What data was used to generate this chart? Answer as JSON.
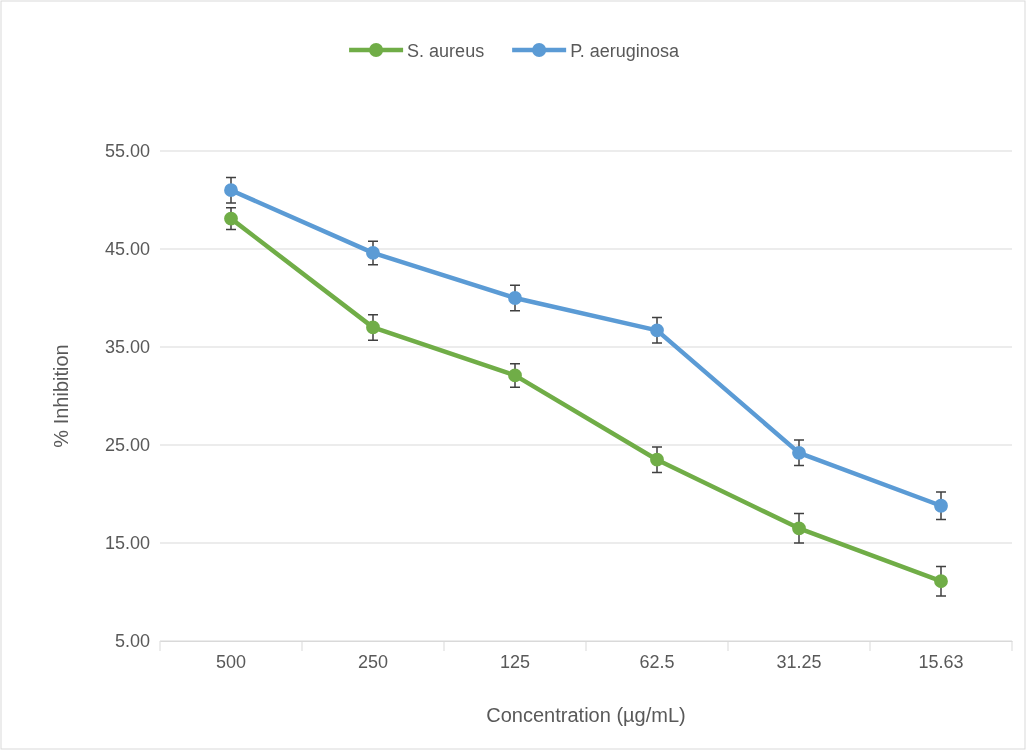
{
  "chart_data": {
    "type": "line",
    "xlabel": "Concentration (µg/mL)",
    "ylabel": "% Inhibition",
    "categories": [
      "500",
      "250",
      "125",
      "62.5",
      "31.25",
      "15.63"
    ],
    "series": [
      {
        "name": "S. aureus",
        "color": "#70ad47",
        "values": [
          48.1,
          37.0,
          32.1,
          23.5,
          16.5,
          11.1
        ],
        "errors": [
          1.1,
          1.3,
          1.2,
          1.3,
          1.5,
          1.5
        ]
      },
      {
        "name": "P. aeruginosa",
        "color": "#5b9bd5",
        "values": [
          51.0,
          44.6,
          40.0,
          36.7,
          24.2,
          18.8
        ],
        "errors": [
          1.3,
          1.2,
          1.3,
          1.3,
          1.3,
          1.4
        ]
      }
    ],
    "ylim": [
      5,
      55
    ],
    "yticks": [
      {
        "value": 5,
        "label": "5.00"
      },
      {
        "value": 15,
        "label": "15.00"
      },
      {
        "value": 25,
        "label": "25.00"
      },
      {
        "value": 35,
        "label": "35.00"
      },
      {
        "value": 45,
        "label": "45.00"
      },
      {
        "value": 55,
        "label": "55.00"
      }
    ],
    "grid": "y",
    "legend": "top",
    "marker": "circle",
    "line_style": "solid"
  }
}
